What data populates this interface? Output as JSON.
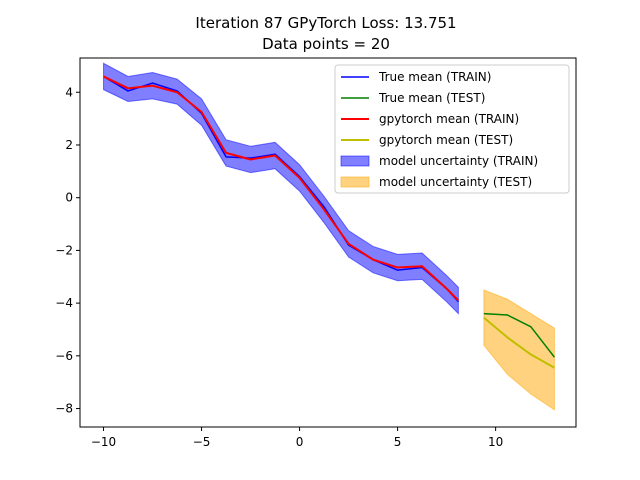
{
  "chart_data": {
    "type": "line",
    "title_line1": "Iteration 87 GPyTorch Loss: 13.751",
    "title_line2": "Data points = 20",
    "xlabel": "",
    "ylabel": "",
    "xlim": [
      -11.2,
      14.1
    ],
    "ylim": [
      -8.7,
      5.3
    ],
    "x_ticks": [
      -10,
      -5,
      0,
      5,
      10
    ],
    "x_tick_labels": [
      "−10",
      "−5",
      "0",
      "5",
      "10"
    ],
    "y_ticks": [
      4,
      2,
      0,
      -2,
      -4,
      -6,
      -8
    ],
    "y_tick_labels": [
      "4",
      "2",
      "0",
      "−2",
      "−4",
      "−6",
      "−8"
    ],
    "grid": false,
    "legend_position": "top-right",
    "colors": {
      "train_true": "#0000ff",
      "test_true": "#008000",
      "train_pred": "#ff0000",
      "test_pred": "#bfbf00",
      "train_band": "#0000ff",
      "test_band": "#ffa500"
    },
    "x_train": [
      -10,
      -8.75,
      -7.5,
      -6.25,
      -5,
      -3.75,
      -2.5,
      -1.25,
      0,
      1.25,
      2.5,
      3.75,
      5,
      6.25,
      7.5,
      8.1
    ],
    "x_test": [
      9.4,
      10.6,
      11.8,
      13
    ],
    "series": [
      {
        "name": "True mean (TRAIN)",
        "type": "line",
        "values": [
          4.6,
          4.05,
          4.35,
          4.05,
          3.2,
          1.55,
          1.5,
          1.65,
          0.8,
          -0.35,
          -1.8,
          -2.35,
          -2.75,
          -2.65,
          -3.45,
          -3.95
        ]
      },
      {
        "name": "True mean (TEST)",
        "type": "line",
        "values": [
          -4.4,
          -4.45,
          -4.9,
          -6.05
        ]
      },
      {
        "name": "gpytorch mean (TRAIN)",
        "type": "line",
        "values": [
          4.6,
          4.15,
          4.25,
          4.0,
          3.25,
          1.7,
          1.45,
          1.6,
          0.75,
          -0.45,
          -1.75,
          -2.35,
          -2.65,
          -2.6,
          -3.45,
          -3.9
        ]
      },
      {
        "name": "gpytorch mean (TEST)",
        "type": "line",
        "values": [
          -4.55,
          -5.3,
          -5.95,
          -6.45
        ]
      },
      {
        "name": "model uncertainty (TRAIN)",
        "type": "band",
        "lower": [
          4.1,
          3.65,
          3.75,
          3.55,
          2.75,
          1.2,
          0.95,
          1.1,
          0.25,
          -0.95,
          -2.25,
          -2.85,
          -3.15,
          -3.1,
          -3.95,
          -4.4
        ],
        "upper": [
          5.1,
          4.6,
          4.75,
          4.5,
          3.75,
          2.2,
          1.95,
          2.1,
          1.25,
          0.05,
          -1.25,
          -1.85,
          -2.15,
          -2.1,
          -2.95,
          -3.4
        ]
      },
      {
        "name": "model  uncertainty (TEST)",
        "type": "band",
        "lower": [
          -5.6,
          -6.7,
          -7.45,
          -8.05
        ],
        "upper": [
          -3.5,
          -3.85,
          -4.4,
          -4.95
        ]
      }
    ]
  }
}
